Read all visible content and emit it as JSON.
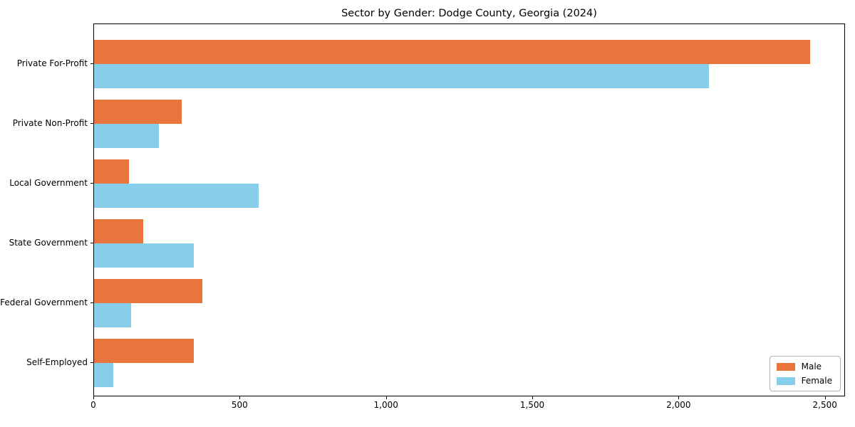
{
  "chart_data": {
    "type": "bar",
    "orientation": "horizontal",
    "title": "Sector by Gender: Dodge County, Georgia (2024)",
    "xlabel": "",
    "ylabel": "",
    "categories": [
      "Private For-Profit",
      "Private Non-Profit",
      "Local Government",
      "State Government",
      "Federal Government",
      "Self-Employed"
    ],
    "series": [
      {
        "name": "Male",
        "color": "#E8763C",
        "values": [
          2446,
          300,
          118,
          167,
          369,
          342
        ]
      },
      {
        "name": "Female",
        "color": "#87CEEB",
        "values": [
          2101,
          222,
          562,
          342,
          126,
          66
        ]
      }
    ],
    "xlim": [
      0,
      2569
    ],
    "xticks": [
      {
        "value": 0,
        "label": "0"
      },
      {
        "value": 500,
        "label": "500"
      },
      {
        "value": 1000,
        "label": "1,000"
      },
      {
        "value": 1500,
        "label": "1,500"
      },
      {
        "value": 2000,
        "label": "2,000"
      },
      {
        "value": 2500,
        "label": "2,500"
      }
    ],
    "grid": false,
    "legend": {
      "position": "lower right",
      "entries": [
        "Male",
        "Female"
      ]
    }
  }
}
